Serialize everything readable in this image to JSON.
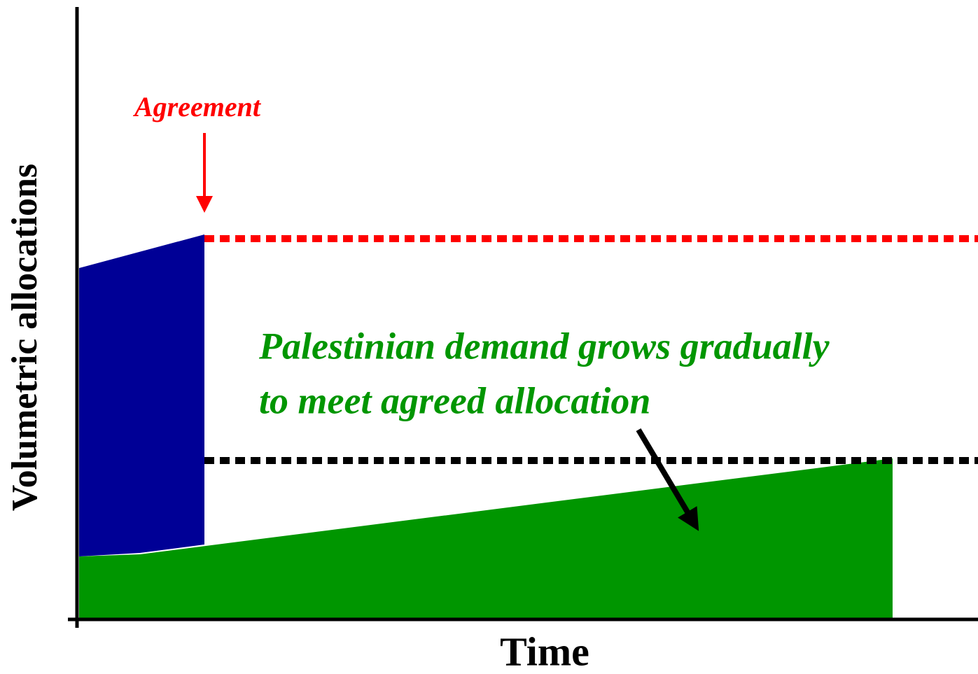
{
  "y_axis_label": "Volumetric allocations",
  "x_axis_label": "Time",
  "annotations": {
    "agreement": "Agreement",
    "demand": [
      "Palestinian demand grows gradually",
      "to meet agreed allocation"
    ]
  }
}
